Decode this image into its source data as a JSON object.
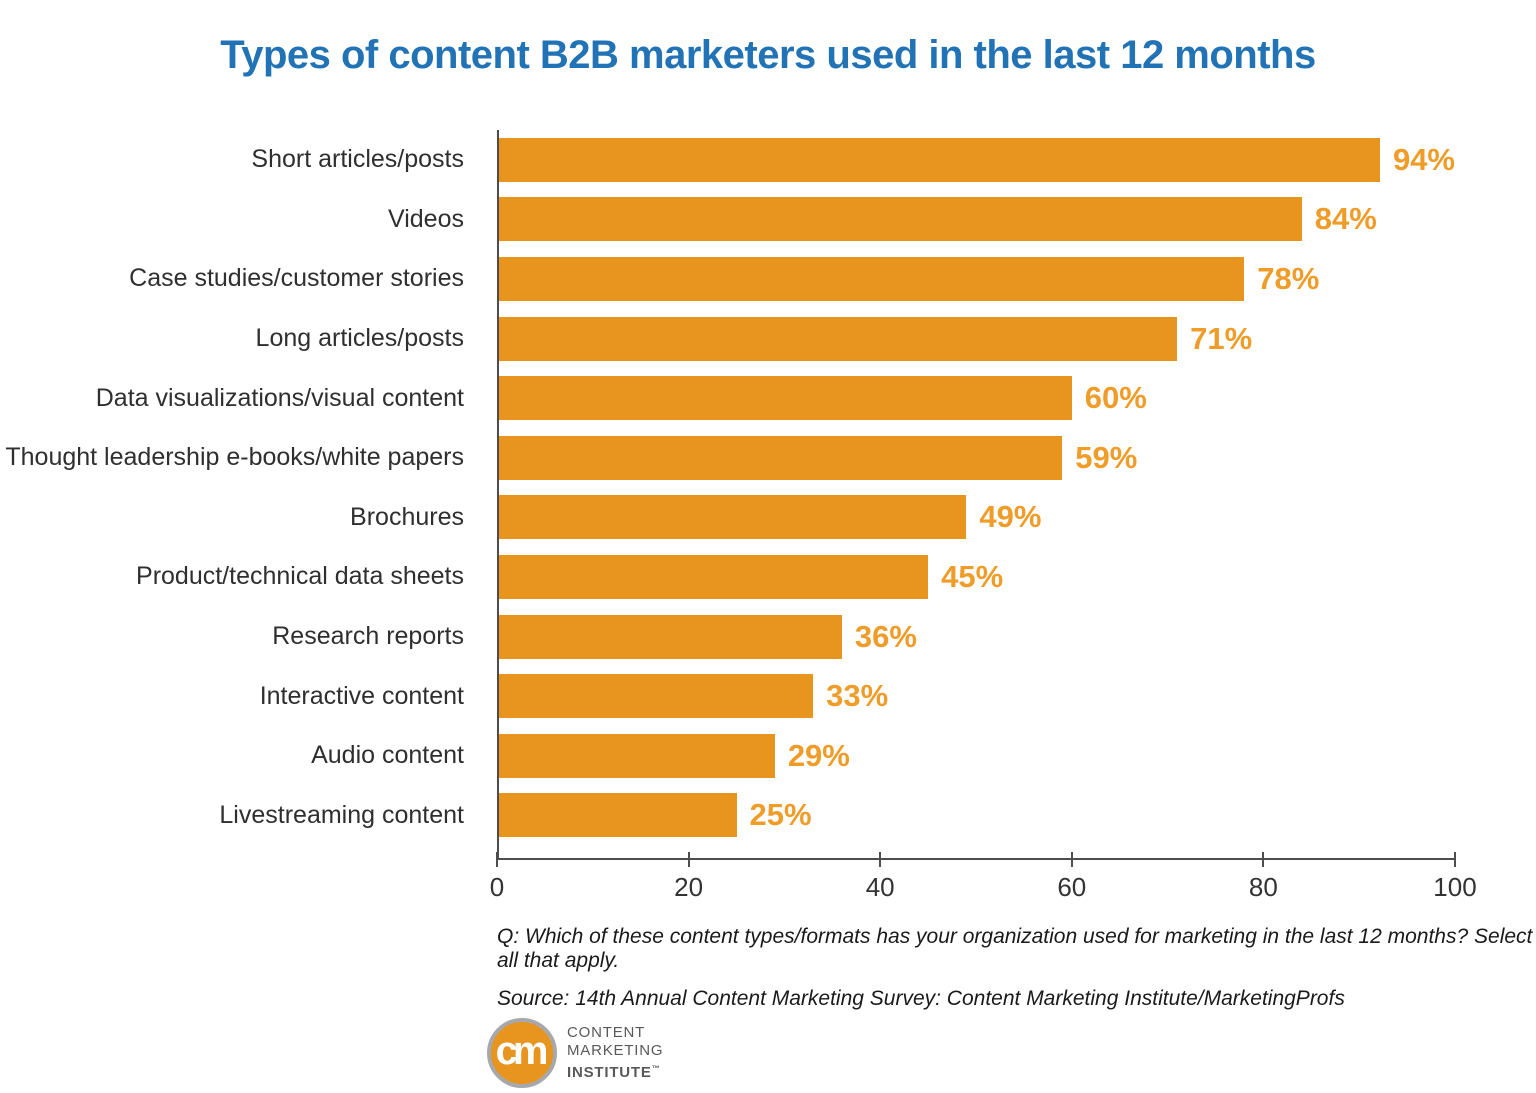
{
  "title": "Types of content B2B marketers used in the last 12 months",
  "chart_data": {
    "type": "bar",
    "orientation": "horizontal",
    "title": "Types of content B2B marketers used in the last 12 months",
    "categories": [
      "Short articles/posts",
      "Videos",
      "Case studies/customer stories",
      "Long articles/posts",
      "Data visualizations/visual content",
      "Thought leadership e-books/white papers",
      "Brochures",
      "Product/technical data sheets",
      "Research reports",
      "Interactive content",
      "Audio content",
      "Livestreaming content"
    ],
    "values": [
      94,
      84,
      78,
      71,
      60,
      59,
      49,
      45,
      36,
      33,
      29,
      25
    ],
    "value_labels": [
      "94%",
      "84%",
      "78%",
      "71%",
      "60%",
      "59%",
      "49%",
      "45%",
      "36%",
      "33%",
      "29%",
      "25%"
    ],
    "xlim": [
      0,
      100
    ],
    "x_ticks": [
      "0",
      "20",
      "40",
      "60",
      "80",
      "100"
    ],
    "xlabel": "",
    "ylabel": "",
    "grid": false,
    "legend": "none",
    "bar_color": "#E8951F",
    "value_label_color": "#EF9C28",
    "title_color": "#2173B5"
  },
  "footer": {
    "question": "Q: Which of these content types/formats has your organization used for marketing in the last 12 months? Select all that apply.",
    "source": "Source: 14th Annual Content Marketing Survey: Content Marketing Institute/MarketingProfs"
  },
  "logo": {
    "monogram": "cm",
    "line1": "CONTENT",
    "line2": "MARKETING",
    "line3": "INSTITUTE",
    "trademark": "™"
  }
}
